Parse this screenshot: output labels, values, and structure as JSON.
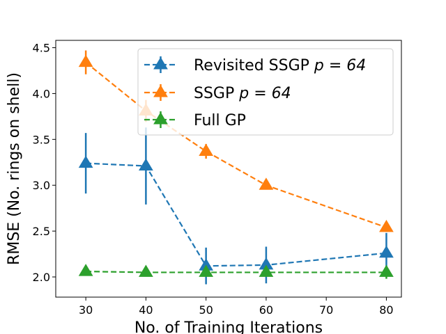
{
  "chart_data": {
    "type": "line",
    "title": "",
    "xlabel": "No. of Training Iterations",
    "ylabel": "RMSE (No. rings on shell)",
    "xlim": [
      25,
      82.5
    ],
    "ylim": [
      1.78,
      4.58
    ],
    "xticks": [
      30,
      40,
      50,
      60,
      70,
      80
    ],
    "yticks": [
      2.0,
      2.5,
      3.0,
      3.5,
      4.0,
      4.5
    ],
    "xtick_labels": [
      "30",
      "40",
      "50",
      "60",
      "70",
      "80"
    ],
    "ytick_labels": [
      "2.0",
      "2.5",
      "3.0",
      "3.5",
      "4.0",
      "4.5"
    ],
    "grid": false,
    "legend_position": "top-right",
    "series": [
      {
        "name": "Revisited SSGP p = 64",
        "legend_text": "Revisited SSGP ",
        "legend_math": "p = 64",
        "color": "#1f77b4",
        "x": [
          30,
          40,
          50,
          60,
          80
        ],
        "y": [
          3.24,
          3.21,
          2.12,
          2.13,
          2.26
        ],
        "yerr": [
          0.33,
          0.42,
          0.2,
          0.2,
          0.22
        ]
      },
      {
        "name": "SSGP p = 64",
        "legend_text": "SSGP ",
        "legend_math": "p = 64",
        "color": "#ff7f0e",
        "x": [
          30,
          40,
          50,
          60,
          80
        ],
        "y": [
          4.34,
          3.81,
          3.37,
          3.0,
          2.54
        ],
        "yerr": [
          0.13,
          0.12,
          0.08,
          0.03,
          0.03
        ]
      },
      {
        "name": "Full GP",
        "legend_text": "Full GP",
        "legend_math": "",
        "color": "#2ca02c",
        "x": [
          30,
          40,
          50,
          60,
          80
        ],
        "y": [
          2.06,
          2.05,
          2.05,
          2.05,
          2.05
        ],
        "yerr": [
          0.02,
          0.02,
          0.02,
          0.02,
          0.07
        ]
      }
    ]
  }
}
